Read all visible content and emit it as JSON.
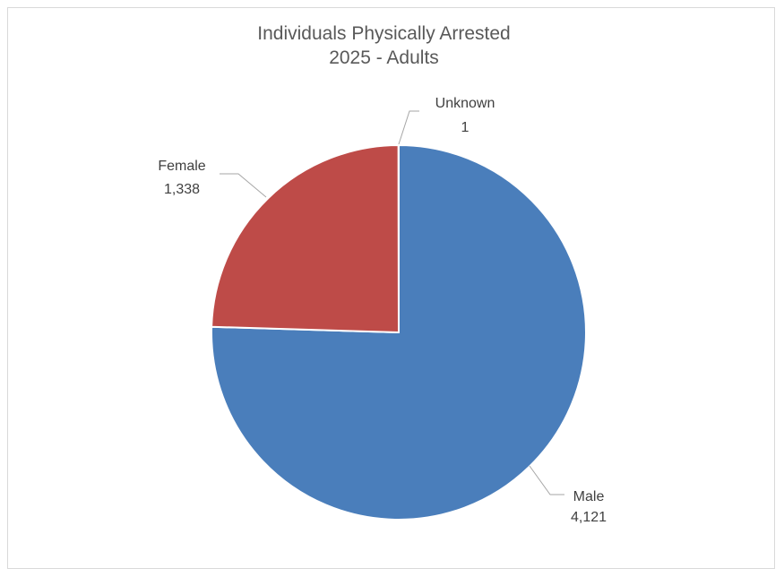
{
  "chart_data": {
    "type": "pie",
    "title": "Individuals Physically Arrested",
    "subtitle": "2025 - Adults",
    "slices": [
      {
        "label": "Male",
        "value": 4121,
        "value_text": "4,121",
        "color": "#4a7ebb"
      },
      {
        "label": "Female",
        "value": 1338,
        "value_text": "1,338",
        "color": "#be4b48"
      },
      {
        "label": "Unknown",
        "value": 1,
        "value_text": "1",
        "color": "#98b954"
      }
    ],
    "legend": "none",
    "data_labels": "outside with leader lines"
  }
}
